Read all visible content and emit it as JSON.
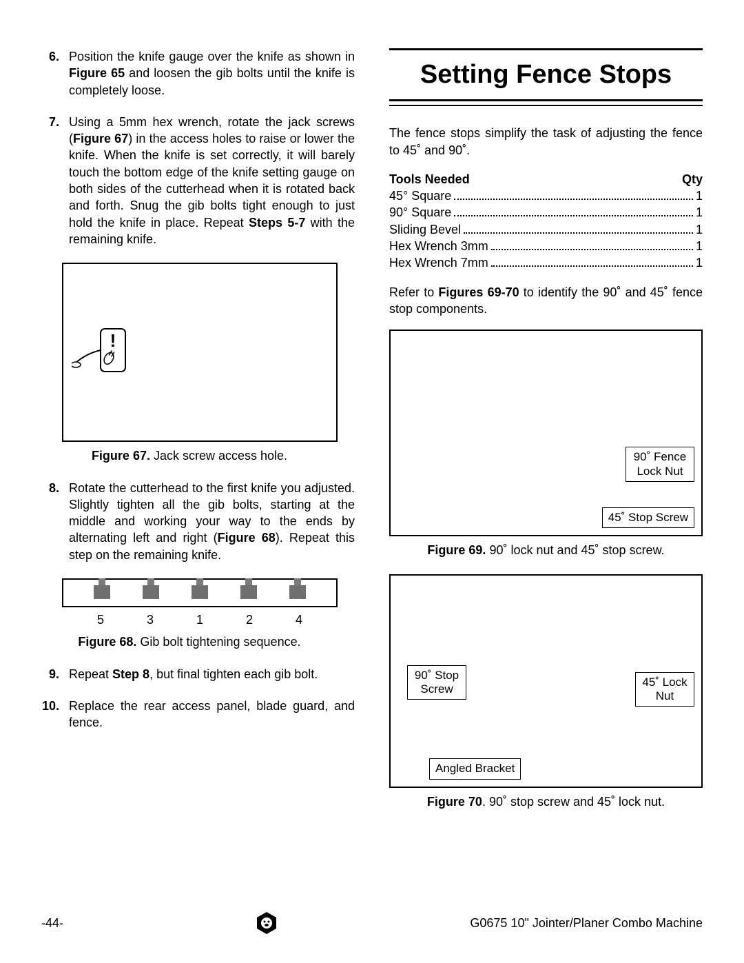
{
  "left": {
    "steps": [
      {
        "n": "6.",
        "html": "Position the knife gauge over the knife as shown in <b>Figure 65</b> and loosen the gib bolts until the knife is completely loose."
      },
      {
        "n": "7.",
        "html": "Using a 5mm hex wrench, rotate the jack screws (<b>Figure 67</b>) in the access holes to raise or lower the knife. When the knife is set correctly, it will barely touch the bottom edge of the knife setting gauge on both sides of the cutterhead when it is rotated back and forth. Snug the gib bolts tight enough to just hold the knife in place. Repeat <b>Steps 5-7</b> with the remaining knife."
      }
    ],
    "fig67_caption_bold": "Figure 67.",
    "fig67_caption_rest": " Jack screw access hole.",
    "step8": {
      "n": "8.",
      "html": "Rotate the cutterhead to the first knife you adjusted. Slightly tighten all the gib bolts, starting at the middle and working your way to the ends by alternating left and right (<b>Figure 68</b>). Repeat this step on the remaining knife."
    },
    "fig68_numbers": [
      "5",
      "3",
      "1",
      "2",
      "4"
    ],
    "fig68_caption_bold": "Figure 68.",
    "fig68_caption_rest": " Gib bolt tightening sequence.",
    "step9": {
      "n": "9.",
      "html": "Repeat <b>Step 8</b>, but final tighten each gib bolt."
    },
    "step10": {
      "n": "10.",
      "html": "Replace the rear access panel, blade guard, and fence."
    }
  },
  "right": {
    "title": "Setting Fence Stops",
    "intro": "The fence stops simplify the task of adjusting the fence to 45˚ and 90˚.",
    "tools_header_left": "Tools Needed",
    "tools_header_right": "Qty",
    "tools": [
      {
        "name": "45° Square",
        "qty": "1"
      },
      {
        "name": "90° Square",
        "qty": "1"
      },
      {
        "name": "Sliding Bevel",
        "qty": "1"
      },
      {
        "name": "Hex Wrench 3mm",
        "qty": "1"
      },
      {
        "name": "Hex Wrench 7mm",
        "qty": "1"
      }
    ],
    "refer_html": "Refer to <b>Figures 69-70</b> to identify the 90˚ and 45˚ fence stop components.",
    "fig69": {
      "labels": [
        {
          "text": "90˚ Fence\nLock Nut",
          "style": "right:10px; top:168px; width:100px;"
        },
        {
          "text": "45˚ Stop Screw",
          "style": "right:10px; bottom:10px;"
        }
      ],
      "caption_bold": "Figure 69.",
      "caption_rest": " 90˚ lock nut and 45˚ stop screw."
    },
    "fig70": {
      "labels": [
        {
          "text": "90˚ Stop\nScrew",
          "style": "left:24px; top:130px; width:86px;"
        },
        {
          "text": "45˚ Lock\nNut",
          "style": "right:10px; top:140px; width:86px;"
        },
        {
          "text": "Angled Bracket",
          "style": "left:56px; bottom:10px;"
        }
      ],
      "caption_bold": "Figure 70",
      "caption_rest": ". 90˚ stop screw and 45˚ lock nut."
    }
  },
  "footer": {
    "page": "-44-",
    "doc": "G0675 10\" Jointer/Planer Combo Machine"
  },
  "colors": {
    "text": "#000000",
    "border": "#000000",
    "gib_fill": "#6f6f6f"
  }
}
